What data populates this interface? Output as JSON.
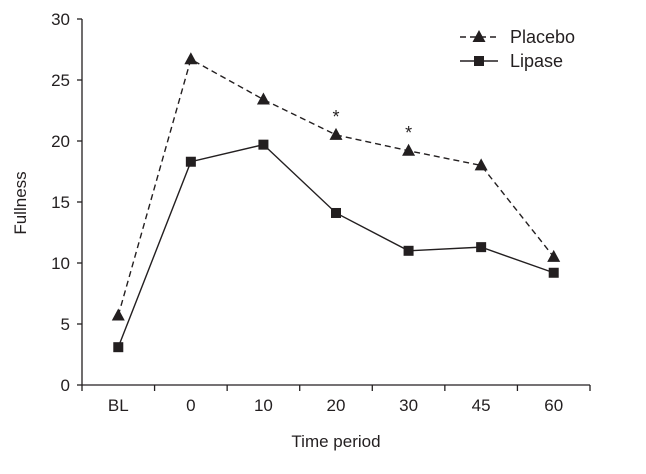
{
  "chart_data": {
    "type": "line",
    "title": "",
    "xlabel": "Time period",
    "ylabel": "Fullness",
    "categories": [
      "BL",
      "0",
      "10",
      "20",
      "30",
      "45",
      "60"
    ],
    "ylim": [
      0,
      30
    ],
    "yticks": [
      0,
      5,
      10,
      15,
      20,
      25,
      30
    ],
    "grid": false,
    "legend_position": "top-right",
    "series": [
      {
        "name": "Placebo",
        "style": "dashed",
        "marker": "triangle",
        "values": [
          5.7,
          26.7,
          23.4,
          20.5,
          19.2,
          18.0,
          10.5
        ]
      },
      {
        "name": "Lipase",
        "style": "solid",
        "marker": "square",
        "values": [
          3.1,
          18.3,
          19.7,
          14.1,
          11.0,
          11.3,
          9.2
        ]
      }
    ],
    "annotations": [
      {
        "text": "*",
        "category": "20",
        "series": "Placebo"
      },
      {
        "text": "*",
        "category": "30",
        "series": "Placebo"
      }
    ],
    "color": "#231f20"
  }
}
